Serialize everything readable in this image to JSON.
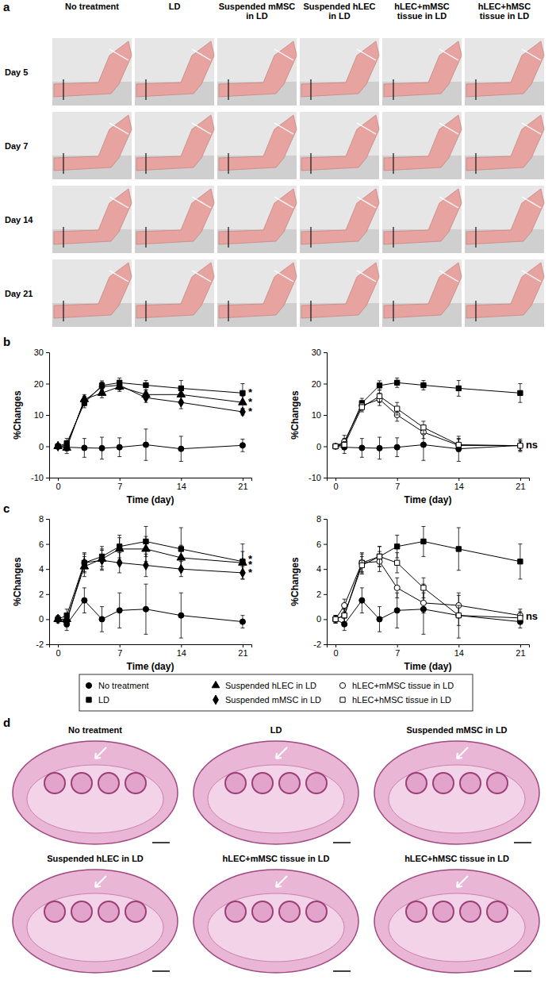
{
  "panel_labels": [
    "a",
    "b",
    "c",
    "d"
  ],
  "panel_a": {
    "column_headers": [
      "No treatment",
      "LD",
      "Suspended mMSC in LD",
      "Suspended hLEC in LD",
      "hLEC+mMSC tissue in LD",
      "hLEC+hMSC tissue in LD"
    ],
    "row_labels": [
      "Day 5",
      "Day 7",
      "Day 14",
      "Day 21"
    ]
  },
  "chart_data": [
    {
      "type": "line",
      "x": [
        0,
        1,
        3,
        5,
        7,
        10,
        14,
        21
      ],
      "xlim": [
        -1,
        22
      ],
      "xticks": [
        0,
        7,
        14,
        21
      ],
      "ylim": [
        -10,
        30
      ],
      "yticks": [
        -10,
        0,
        10,
        20,
        30
      ],
      "x_label": "Time (day)",
      "y_label": "%Changes",
      "grid": false,
      "series": [
        {
          "name": "No treatment",
          "color": "#000000",
          "marker": "circle",
          "values": [
            0,
            -0.3,
            -0.5,
            -0.6,
            -0.3,
            0.5,
            -0.8,
            0.3
          ],
          "errors": [
            0.5,
            2,
            3,
            3.5,
            3,
            5,
            4,
            2
          ]
        },
        {
          "name": "LD",
          "color": "#000000",
          "marker": "square",
          "values": [
            0,
            1,
            13.8,
            19.4,
            20.3,
            19.5,
            18.5,
            17
          ],
          "errors": [
            0.5,
            1.5,
            1.5,
            1.5,
            1.5,
            1.5,
            2.5,
            3
          ]
        },
        {
          "name": "Suspended hLEC in LD",
          "color": "#000000",
          "marker": "triangle",
          "values": [
            0,
            -0.5,
            15,
            17,
            19,
            16.5,
            16.5,
            14
          ],
          "errors": [
            0.5,
            1,
            1.5,
            1.5,
            1.5,
            1.5,
            2,
            2
          ]
        },
        {
          "name": "Suspended mMSC in LD",
          "color": "#000000",
          "marker": "diamond",
          "values": [
            0,
            0.3,
            14.5,
            19,
            19.5,
            15.5,
            14,
            11
          ],
          "errors": [
            0.5,
            1,
            1.5,
            1.5,
            1.5,
            1.5,
            2,
            1
          ]
        }
      ],
      "annotations": [
        {
          "text": "*",
          "x": 21,
          "y": 17
        },
        {
          "text": "*",
          "x": 21,
          "y": 14
        },
        {
          "text": "*",
          "x": 21,
          "y": 11
        }
      ]
    },
    {
      "type": "line",
      "x": [
        0,
        1,
        3,
        5,
        7,
        10,
        14,
        21
      ],
      "xlim": [
        -1,
        22
      ],
      "xticks": [
        0,
        7,
        14,
        21
      ],
      "ylim": [
        -10,
        30
      ],
      "yticks": [
        -10,
        0,
        10,
        20,
        30
      ],
      "x_label": "Time (day)",
      "y_label": "%Changes",
      "grid": false,
      "series": [
        {
          "name": "No treatment",
          "color": "#000000",
          "marker": "circle",
          "values": [
            0,
            -0.3,
            -0.5,
            -0.6,
            -0.3,
            0.5,
            -0.8,
            0.3
          ],
          "errors": [
            0.5,
            2,
            3,
            3.5,
            3,
            5,
            4,
            2
          ]
        },
        {
          "name": "LD",
          "color": "#000000",
          "marker": "square",
          "values": [
            0,
            1,
            13.8,
            19.4,
            20.3,
            19.5,
            18.5,
            17
          ],
          "errors": [
            0.5,
            1.5,
            1.5,
            1.5,
            1.5,
            1.5,
            2.5,
            3
          ]
        },
        {
          "name": "hLEC+mMSC tissue in LD",
          "color": "#000000",
          "marker": "circle-open",
          "values": [
            0,
            1.5,
            13,
            15,
            10,
            4.5,
            0.3,
            0.2
          ],
          "errors": [
            0.5,
            2,
            1.5,
            2,
            2,
            2,
            2,
            1.5
          ]
        },
        {
          "name": "hLEC+hMSC tissue in LD",
          "color": "#000000",
          "marker": "square-open",
          "values": [
            0,
            0.5,
            12.5,
            16,
            12,
            6,
            0.5,
            0.2
          ],
          "errors": [
            0.5,
            1,
            1.5,
            2,
            2,
            2,
            2,
            1.5
          ]
        }
      ],
      "annotations": [
        {
          "text": "ns",
          "x": 21,
          "y": 0.3
        }
      ]
    },
    {
      "type": "line",
      "x": [
        0,
        1,
        3,
        5,
        7,
        10,
        14,
        21
      ],
      "xlim": [
        -1,
        22
      ],
      "xticks": [
        0,
        7,
        14,
        21
      ],
      "ylim": [
        -2,
        8
      ],
      "yticks": [
        -2,
        0,
        2,
        4,
        6,
        8
      ],
      "x_label": "Time (day)",
      "y_label": "%Changes",
      "grid": false,
      "series": [
        {
          "name": "No treatment",
          "color": "#000000",
          "marker": "circle",
          "values": [
            0,
            -0.4,
            1.5,
            0,
            0.7,
            0.8,
            0.3,
            -0.2
          ],
          "errors": [
            0.3,
            0.5,
            1,
            1,
            1.4,
            2,
            1.8,
            0.5
          ]
        },
        {
          "name": "LD",
          "color": "#000000",
          "marker": "square",
          "values": [
            0,
            0.3,
            4.5,
            5,
            5.8,
            6.2,
            5.6,
            4.6
          ],
          "errors": [
            0.2,
            0.5,
            0.8,
            0.8,
            0.9,
            1.2,
            1.7,
            1.4
          ]
        },
        {
          "name": "Suspended hLEC in LD",
          "color": "#000000",
          "marker": "triangle",
          "values": [
            0,
            0,
            4.2,
            4.8,
            5.6,
            5.6,
            4.9,
            4.5
          ],
          "errors": [
            0.2,
            0.4,
            0.8,
            0.8,
            0.9,
            1,
            1,
            0.9
          ]
        },
        {
          "name": "Suspended mMSC in LD",
          "color": "#000000",
          "marker": "diamond",
          "values": [
            0,
            -0.2,
            4.5,
            4.7,
            4.5,
            4.3,
            4,
            3.7
          ],
          "errors": [
            0.2,
            0.4,
            0.7,
            0.8,
            0.8,
            0.9,
            0.6,
            0.5
          ]
        }
      ],
      "annotations": [
        {
          "text": "*",
          "x": 21,
          "y": 4.8
        },
        {
          "text": "*",
          "x": 21,
          "y": 4.3
        },
        {
          "text": "*",
          "x": 21,
          "y": 3.7
        }
      ]
    },
    {
      "type": "line",
      "x": [
        0,
        1,
        3,
        5,
        7,
        10,
        14,
        21
      ],
      "xlim": [
        -1,
        22
      ],
      "xticks": [
        0,
        7,
        14,
        21
      ],
      "ylim": [
        -2,
        8
      ],
      "yticks": [
        -2,
        0,
        2,
        4,
        6,
        8
      ],
      "x_label": "Time (day)",
      "y_label": "%Changes",
      "grid": false,
      "series": [
        {
          "name": "No treatment",
          "color": "#000000",
          "marker": "circle",
          "values": [
            0,
            -0.4,
            1.5,
            0,
            0.7,
            0.8,
            0.3,
            -0.2
          ],
          "errors": [
            0.3,
            0.5,
            1,
            1,
            1.4,
            2,
            1.8,
            0.5
          ]
        },
        {
          "name": "LD",
          "color": "#000000",
          "marker": "square",
          "values": [
            0,
            0.3,
            4.5,
            5,
            5.8,
            6.2,
            5.6,
            4.6
          ],
          "errors": [
            0.2,
            0.5,
            0.8,
            0.8,
            0.9,
            1.2,
            1.7,
            1.4
          ]
        },
        {
          "name": "hLEC+mMSC tissue in LD",
          "color": "#000000",
          "marker": "circle-open",
          "values": [
            0,
            1.1,
            4.5,
            4.6,
            2.5,
            1.3,
            1.1,
            0.3
          ],
          "errors": [
            0.3,
            0.5,
            0.7,
            0.8,
            0.8,
            0.8,
            0.8,
            0.5
          ]
        },
        {
          "name": "hLEC+hMSC tissue in LD",
          "color": "#000000",
          "marker": "square-open",
          "values": [
            0,
            0.3,
            4.3,
            5,
            4.5,
            2.5,
            0.3,
            0.1
          ],
          "errors": [
            0.3,
            0.5,
            0.7,
            0.8,
            0.8,
            0.8,
            0.8,
            0.5
          ]
        }
      ],
      "annotations": [
        {
          "text": "ns",
          "x": 21,
          "y": 0.2
        }
      ]
    }
  ],
  "shared_legend": {
    "position": "bottom",
    "items": [
      {
        "name": "No treatment",
        "marker": "circle"
      },
      {
        "name": "LD",
        "marker": "square"
      },
      {
        "name": "Suspended hLEC in LD",
        "marker": "triangle"
      },
      {
        "name": "Suspended mMSC in LD",
        "marker": "diamond"
      },
      {
        "name": "hLEC+mMSC tissue in LD",
        "marker": "circle-open"
      },
      {
        "name": "hLEC+hMSC tissue in LD",
        "marker": "square-open"
      }
    ]
  },
  "panel_d": {
    "titles": [
      "No treatment",
      "LD",
      "Suspended mMSC in LD",
      "Suspended hLEC in LD",
      "hLEC+mMSC tissue in LD",
      "hLEC+hMSC tissue in LD"
    ]
  }
}
